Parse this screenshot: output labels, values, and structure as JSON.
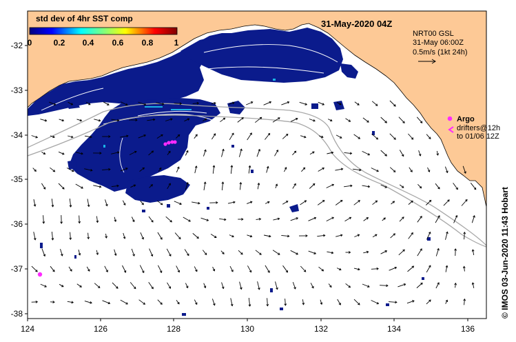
{
  "map": {
    "title": "31-May-2020 04Z",
    "x_ticks": [
      "124",
      "126",
      "128",
      "130",
      "132",
      "134",
      "136"
    ],
    "y_ticks": [
      "-32",
      "-33",
      "-34",
      "-35",
      "-36",
      "-37",
      "-38"
    ],
    "lon_range": [
      124,
      136.5
    ],
    "lat_range": [
      -38.05,
      -31.4
    ],
    "colors": {
      "land": "#fdc996",
      "sst": "#0b1b8c",
      "argo": "#ff2bff"
    }
  },
  "colorbar": {
    "title": "std dev of 4hr SST comp",
    "ticks": [
      "0",
      "0.2",
      "0.4",
      "0.6",
      "0.8",
      "1"
    ]
  },
  "vector_legend": {
    "line1": "NRT00 GSL",
    "line2": "31-May 06:00Z",
    "line3": "0.5m/s (1kt 24h)"
  },
  "argo_legend": {
    "title": "Argo",
    "line1": "drifters@12h",
    "line2": "to 01/06 12Z"
  },
  "credit": "© IMOS 03-Jun-2020 11:43 Hobart"
}
